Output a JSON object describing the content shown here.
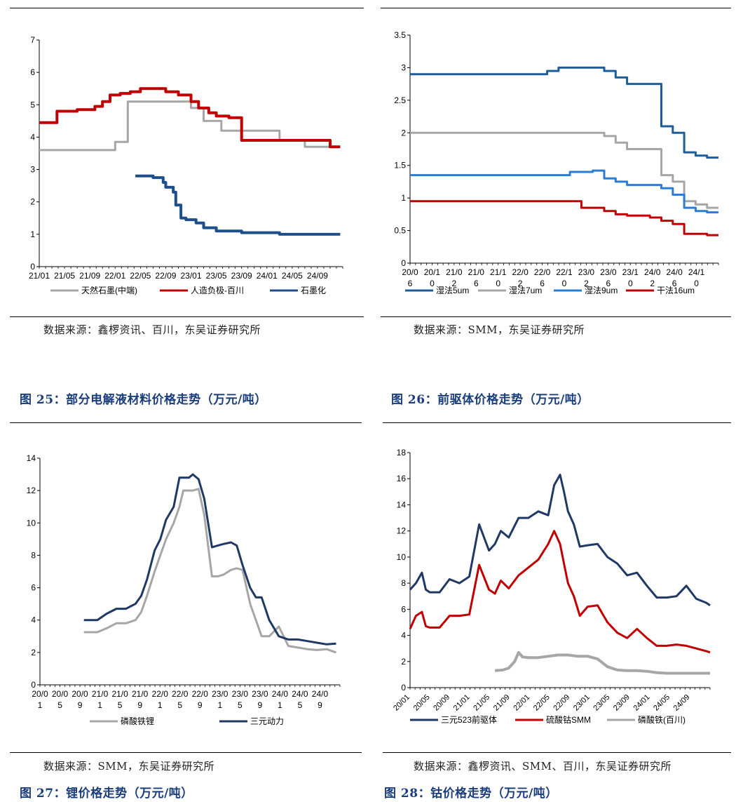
{
  "figures": [
    {
      "id": "fig24",
      "source": "数据来源：鑫椤资讯、百川，东吴证券研究所"
    },
    {
      "id": "fig25base",
      "source": "数据来源：SMM，东吴证券研究所"
    },
    {
      "id": "fig25",
      "title": "图 25：部分电解液材料价格走势（万元/吨）",
      "source": "数据来源：SMM，东吴证券研究所"
    },
    {
      "id": "fig26",
      "title": "图 26：前驱体价格走势（万元/吨）",
      "source": "数据来源：鑫椤资讯、SMM、百川，东吴证券研究所"
    },
    {
      "id": "fig27",
      "title": "图 27：锂价格走势（万元/吨）"
    },
    {
      "id": "fig28",
      "title": "图 28：钴价格走势（万元/吨）"
    }
  ],
  "chart_data": [
    {
      "type": "line",
      "ylim": [
        0,
        7
      ],
      "yticks": [
        "0",
        "1",
        "2",
        "3",
        "4",
        "5",
        "6",
        "7"
      ],
      "xticks": [
        "21/01",
        "21/05",
        "21/09",
        "22/01",
        "22/05",
        "22/09",
        "23/01",
        "23/05",
        "23/09",
        "24/01",
        "24/05",
        "24/09"
      ],
      "series": [
        {
          "name": "天然石墨(中端)",
          "color": "#a6a6a6",
          "x": [
            0,
            1.5,
            2,
            2.5,
            3,
            3.5,
            3.5,
            4.5,
            5.2,
            5.5,
            6,
            6.5,
            7.2,
            8,
            8,
            9.5,
            10.5,
            10.5,
            11.5,
            11.9
          ],
          "values": [
            3.6,
            3.6,
            3.6,
            3.6,
            3.85,
            3.85,
            5.1,
            5.1,
            5.1,
            5.1,
            4.9,
            4.5,
            4.2,
            4.2,
            4.2,
            3.9,
            3.9,
            3.7,
            3.7,
            3.7
          ]
        },
        {
          "name": "人造负极-百川",
          "color": "#c00000",
          "x": [
            0,
            0.6,
            0.7,
            1.5,
            1.7,
            2.2,
            2.5,
            2.8,
            3.2,
            3.6,
            4,
            4.5,
            5,
            5.5,
            6,
            6.3,
            6.7,
            7,
            7.5,
            8,
            9,
            10,
            10.5,
            11,
            11.5,
            11.9
          ],
          "values": [
            4.45,
            4.45,
            4.8,
            4.85,
            4.85,
            4.95,
            5.1,
            5.3,
            5.35,
            5.4,
            5.5,
            5.5,
            5.4,
            5.3,
            5.1,
            4.9,
            4.75,
            4.65,
            4.6,
            3.9,
            3.9,
            3.9,
            3.9,
            3.9,
            3.7,
            3.7
          ]
        },
        {
          "name": "石墨化",
          "color": "#1f4e8c",
          "x": [
            3.8,
            4.2,
            4.5,
            4.9,
            5.0,
            5.3,
            5.4,
            5.6,
            5.8,
            6.2,
            6.5,
            7.0,
            8,
            9.5,
            10.5,
            11.9
          ],
          "values": [
            2.8,
            2.8,
            2.75,
            2.6,
            2.45,
            2.3,
            1.9,
            1.5,
            1.45,
            1.35,
            1.2,
            1.1,
            1.05,
            1.0,
            1.0,
            1.0
          ]
        }
      ]
    },
    {
      "type": "line",
      "ylim": [
        0,
        3.5
      ],
      "yticks": [
        "0",
        "0.5",
        "1",
        "1.5",
        "2",
        "2.5",
        "3",
        "3.5"
      ],
      "xticks": [
        [
          "20/0",
          "6"
        ],
        [
          "20/1",
          "0"
        ],
        [
          "21/0",
          "2"
        ],
        [
          "21/0",
          "6"
        ],
        [
          "21/1",
          "0"
        ],
        [
          "22/0",
          "2"
        ],
        [
          "22/0",
          "6"
        ],
        [
          "22/1",
          "0"
        ],
        [
          "23/0",
          "2"
        ],
        [
          "23/0",
          "6"
        ],
        [
          "23/1",
          "0"
        ],
        [
          "24/0",
          "2"
        ],
        [
          "24/0",
          "6"
        ],
        [
          "24/1",
          "0"
        ]
      ],
      "series": [
        {
          "name": "湿法5um",
          "color": "#1f5c9c",
          "x": [
            0,
            4,
            4.5,
            5,
            5.5,
            6,
            6.5,
            7,
            7.5,
            8,
            8.5,
            9,
            9.5,
            10,
            10.5,
            11,
            11.5,
            12,
            12.5,
            13,
            13.5
          ],
          "values": [
            2.9,
            2.9,
            2.9,
            2.9,
            2.9,
            2.95,
            3.0,
            3.0,
            3.0,
            3.0,
            2.95,
            2.85,
            2.75,
            2.75,
            2.75,
            2.1,
            2.0,
            1.7,
            1.65,
            1.62,
            1.62
          ]
        },
        {
          "name": "湿法7um",
          "color": "#a6a6a6",
          "x": [
            0,
            4,
            5,
            6,
            7,
            8,
            8.5,
            9,
            9.5,
            10,
            10.5,
            11,
            11.5,
            12,
            12.5,
            13,
            13.5
          ],
          "values": [
            2.0,
            2.0,
            2.0,
            2.0,
            2.0,
            2.0,
            1.95,
            1.85,
            1.75,
            1.75,
            1.75,
            1.35,
            1.25,
            0.95,
            0.9,
            0.85,
            0.85
          ]
        },
        {
          "name": "湿法9um",
          "color": "#2b7cd3",
          "x": [
            0,
            4,
            5,
            6,
            7,
            8,
            8.5,
            9,
            9.5,
            10,
            10.5,
            11,
            11.5,
            12,
            12.5,
            13,
            13.5
          ],
          "values": [
            1.35,
            1.35,
            1.35,
            1.35,
            1.4,
            1.42,
            1.3,
            1.25,
            1.2,
            1.2,
            1.2,
            1.15,
            1.05,
            0.85,
            0.8,
            0.78,
            0.78
          ]
        },
        {
          "name": "干法16um",
          "color": "#c00000",
          "x": [
            0,
            4,
            5,
            6,
            7,
            7.5,
            8,
            8.5,
            9,
            9.5,
            10,
            10.5,
            11,
            11.5,
            12,
            12.5,
            13,
            13.5
          ],
          "values": [
            0.95,
            0.95,
            0.95,
            0.95,
            0.95,
            0.85,
            0.85,
            0.8,
            0.75,
            0.73,
            0.73,
            0.7,
            0.65,
            0.6,
            0.45,
            0.45,
            0.43,
            0.43
          ]
        }
      ]
    },
    {
      "type": "line",
      "ylim": [
        0,
        14
      ],
      "yticks": [
        "0",
        "2",
        "4",
        "6",
        "8",
        "10",
        "12",
        "14"
      ],
      "xticks": [
        [
          "20/0",
          "1"
        ],
        [
          "20/0",
          "5"
        ],
        [
          "20/0",
          "9"
        ],
        [
          "21/0",
          "1"
        ],
        [
          "21/0",
          "5"
        ],
        [
          "21/0",
          "9"
        ],
        [
          "22/0",
          "1"
        ],
        [
          "22/0",
          "5"
        ],
        [
          "22/0",
          "9"
        ],
        [
          "23/0",
          "1"
        ],
        [
          "23/0",
          "5"
        ],
        [
          "23/0",
          "9"
        ],
        [
          "24/0",
          "1"
        ],
        [
          "24/0",
          "5"
        ],
        [
          "24/0",
          "9"
        ]
      ],
      "series": [
        {
          "name": "磷酸铁锂",
          "color": "#a6a6a6",
          "x": [
            2.3,
            3,
            3.5,
            4,
            4.5,
            5,
            5.3,
            5.6,
            6,
            6.3,
            6.6,
            7,
            7.3,
            7.5,
            7.8,
            8,
            8.3,
            8.6,
            9,
            9.3,
            9.6,
            10,
            10.3,
            10.6,
            11,
            11.3,
            11.6,
            12,
            12.5,
            13,
            13.5,
            14,
            14.5,
            15,
            15.5
          ],
          "values": [
            3.25,
            3.25,
            3.5,
            3.8,
            3.8,
            4.0,
            4.5,
            5.5,
            7.0,
            8.0,
            9.0,
            10.0,
            11.0,
            12.0,
            12.0,
            12.0,
            12.1,
            10.5,
            6.7,
            6.7,
            6.8,
            7.1,
            7.2,
            7.1,
            5.0,
            4.0,
            3.0,
            3.0,
            3.6,
            2.4,
            2.3,
            2.2,
            2.15,
            2.2,
            2.0
          ]
        },
        {
          "name": "三元动力",
          "color": "#1f3864",
          "x": [
            2.3,
            3,
            3.5,
            4,
            4.5,
            5,
            5.3,
            5.6,
            6,
            6.3,
            6.6,
            7,
            7.3,
            7.5,
            7.8,
            8,
            8.3,
            8.6,
            9,
            9.3,
            9.6,
            10,
            10.3,
            10.6,
            11,
            11.3,
            11.6,
            12,
            12.5,
            13,
            13.5,
            14,
            14.5,
            15,
            15.5
          ],
          "values": [
            4.0,
            4.0,
            4.4,
            4.7,
            4.7,
            5.0,
            5.5,
            6.5,
            8.3,
            9.0,
            10.2,
            11.0,
            12.8,
            12.8,
            12.8,
            13.0,
            12.7,
            11.5,
            8.5,
            8.6,
            8.7,
            8.8,
            8.6,
            7.4,
            6.0,
            5.4,
            5.4,
            4.0,
            3.0,
            2.8,
            2.8,
            2.7,
            2.6,
            2.5,
            2.55
          ]
        }
      ]
    },
    {
      "type": "line",
      "ylim": [
        0,
        18
      ],
      "yticks": [
        "0",
        "2",
        "4",
        "6",
        "8",
        "10",
        "12",
        "14",
        "16",
        "18"
      ],
      "xticks": [
        "20/01",
        "20/05",
        "20/09",
        "21/01",
        "21/05",
        "21/09",
        "22/01",
        "22/05",
        "22/09",
        "23/01",
        "23/05",
        "23/09",
        "24/01",
        "24/05",
        "24/09"
      ],
      "series": [
        {
          "name": "三元523前驱体",
          "color": "#1f3864",
          "x": [
            0,
            0.3,
            0.6,
            0.8,
            1,
            1.5,
            2,
            2.5,
            3,
            3.5,
            4,
            4.3,
            4.6,
            5,
            5.5,
            6,
            6.5,
            7,
            7.3,
            7.6,
            7.8,
            8,
            8.3,
            8.6,
            9,
            9.5,
            10,
            10.5,
            11,
            11.5,
            12,
            12.5,
            13,
            13.5,
            14,
            14.5,
            15,
            15.2
          ],
          "values": [
            7.5,
            8.0,
            8.8,
            7.5,
            7.3,
            7.3,
            8.3,
            8.0,
            8.5,
            12.5,
            10.5,
            11.0,
            12.0,
            11.5,
            13.0,
            13.0,
            13.5,
            13.2,
            15.5,
            16.3,
            15.0,
            13.5,
            12.5,
            10.8,
            10.9,
            11.0,
            10.0,
            9.5,
            8.6,
            8.8,
            7.8,
            6.9,
            6.9,
            7.0,
            7.8,
            6.8,
            6.5,
            6.3
          ]
        },
        {
          "name": "硫酸钴SMM",
          "color": "#c00000",
          "x": [
            0,
            0.3,
            0.6,
            0.8,
            1,
            1.5,
            2,
            2.5,
            3,
            3.5,
            4,
            4.3,
            4.6,
            5,
            5.5,
            6,
            6.5,
            7,
            7.3,
            7.6,
            7.8,
            8,
            8.3,
            8.6,
            9,
            9.5,
            10,
            10.5,
            11,
            11.5,
            12,
            12.5,
            13,
            13.5,
            14,
            14.5,
            15,
            15.2
          ],
          "values": [
            4.5,
            5.5,
            5.8,
            4.7,
            4.6,
            4.6,
            5.5,
            5.5,
            5.6,
            9.4,
            7.5,
            7.2,
            8.2,
            7.6,
            8.6,
            9.2,
            9.8,
            11.0,
            12.0,
            11.0,
            9.5,
            8.0,
            7.0,
            5.5,
            6.2,
            6.3,
            5.0,
            4.2,
            3.8,
            4.5,
            3.8,
            3.2,
            3.2,
            3.3,
            3.2,
            3.0,
            2.8,
            2.7
          ]
        },
        {
          "name": "磷酸铁(百川)",
          "color": "#a6a6a6",
          "x": [
            4.3,
            4.7,
            5,
            5.3,
            5.5,
            5.7,
            6,
            6.5,
            7,
            7.5,
            8,
            8.5,
            9,
            9.5,
            10,
            10.5,
            11,
            11.5,
            12,
            12.5,
            13,
            13.5,
            14,
            14.5,
            15,
            15.2
          ],
          "values": [
            1.3,
            1.35,
            1.5,
            2.0,
            2.7,
            2.35,
            2.3,
            2.3,
            2.4,
            2.5,
            2.5,
            2.4,
            2.4,
            2.2,
            1.6,
            1.35,
            1.3,
            1.3,
            1.25,
            1.15,
            1.1,
            1.1,
            1.1,
            1.1,
            1.1,
            1.1
          ]
        }
      ]
    }
  ]
}
